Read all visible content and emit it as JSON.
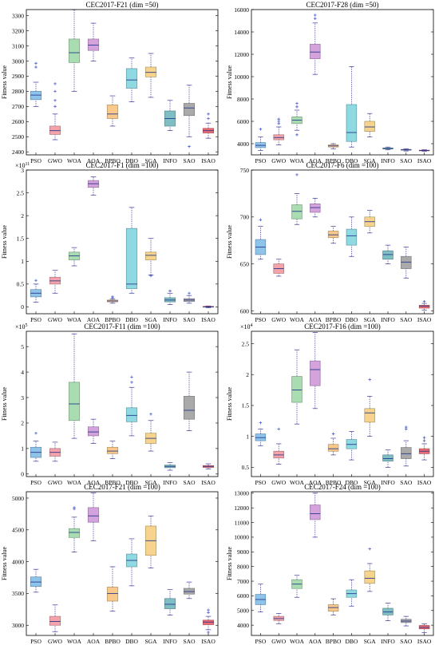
{
  "chart_data": [
    {
      "type": "box",
      "title": "CEC2017-F21 (dim =50)",
      "ylabel": "Fitness value",
      "categories": [
        "PSO",
        "GWO",
        "WOA",
        "AOA",
        "BPBO",
        "DBO",
        "SGA",
        "INFO",
        "SAO",
        "ISAO"
      ],
      "ylim": [
        2380,
        3340
      ],
      "yticks": [
        2400,
        2500,
        2600,
        2700,
        2800,
        2900,
        3000,
        3100,
        3200,
        3300
      ],
      "ytick_labels": [
        "2400",
        "2500",
        "2600",
        "2700",
        "2800",
        "2900",
        "3000",
        "3100",
        "3200",
        "3300"
      ],
      "exponent": "",
      "boxes": [
        {
          "min": 2700,
          "q1": 2745,
          "median": 2775,
          "q3": 2800,
          "max": 2860,
          "outliers": [
            2960,
            2985
          ]
        },
        {
          "min": 2480,
          "q1": 2515,
          "median": 2540,
          "q3": 2570,
          "max": 2650,
          "outliers": [
            2700,
            2740,
            2800,
            2850
          ]
        },
        {
          "min": 2800,
          "q1": 2990,
          "median": 3055,
          "q3": 3145,
          "max": 3340,
          "outliers": []
        },
        {
          "min": 3000,
          "q1": 3070,
          "median": 3105,
          "q3": 3145,
          "max": 3250,
          "outliers": []
        },
        {
          "min": 2570,
          "q1": 2620,
          "median": 2650,
          "q3": 2710,
          "max": 2770,
          "outliers": []
        },
        {
          "min": 2730,
          "q1": 2820,
          "median": 2875,
          "q3": 2950,
          "max": 3020,
          "outliers": []
        },
        {
          "min": 2760,
          "q1": 2895,
          "median": 2925,
          "q3": 2960,
          "max": 3050,
          "outliers": []
        },
        {
          "min": 2540,
          "q1": 2570,
          "median": 2620,
          "q3": 2670,
          "max": 2740,
          "outliers": []
        },
        {
          "min": 2500,
          "q1": 2640,
          "median": 2690,
          "q3": 2720,
          "max": 2840,
          "outliers": [
            2435
          ]
        },
        {
          "min": 2490,
          "q1": 2525,
          "median": 2540,
          "q3": 2555,
          "max": 2590,
          "outliers": [
            2620,
            2650
          ]
        }
      ]
    },
    {
      "type": "box",
      "title": "CEC2017-F28 (dim =50)",
      "ylabel": "Fitness value",
      "categories": [
        "PSO",
        "GWO",
        "WOA",
        "AOA",
        "BPBO",
        "DBO",
        "SGA",
        "INFO",
        "SAO",
        "ISAO"
      ],
      "ylim": [
        3000,
        16000
      ],
      "yticks": [
        4000,
        6000,
        8000,
        10000,
        12000,
        14000,
        16000
      ],
      "ytick_labels": [
        "4000",
        "6000",
        "8000",
        "10000",
        "12000",
        "14000",
        "16000"
      ],
      "exponent": "",
      "boxes": [
        {
          "min": 3400,
          "q1": 3650,
          "median": 3850,
          "q3": 4100,
          "max": 4600,
          "outliers": [
            5300
          ]
        },
        {
          "min": 3900,
          "q1": 4350,
          "median": 4550,
          "q3": 4800,
          "max": 5500,
          "outliers": [
            5800,
            6000,
            6200
          ]
        },
        {
          "min": 5200,
          "q1": 5800,
          "median": 6100,
          "q3": 6400,
          "max": 7000,
          "outliers": [
            4800,
            7300,
            7600
          ]
        },
        {
          "min": 10200,
          "q1": 11600,
          "median": 12200,
          "q3": 12900,
          "max": 14800,
          "outliers": [
            15200,
            15500
          ]
        },
        {
          "min": 3550,
          "q1": 3700,
          "median": 3800,
          "q3": 3900,
          "max": 4000,
          "outliers": []
        },
        {
          "min": 3700,
          "q1": 4200,
          "median": 5000,
          "q3": 7500,
          "max": 10900,
          "outliers": []
        },
        {
          "min": 4600,
          "q1": 5100,
          "median": 5500,
          "q3": 6000,
          "max": 6700,
          "outliers": []
        },
        {
          "min": 3450,
          "q1": 3530,
          "median": 3570,
          "q3": 3620,
          "max": 3700,
          "outliers": []
        },
        {
          "min": 3350,
          "q1": 3420,
          "median": 3450,
          "q3": 3490,
          "max": 3550,
          "outliers": []
        },
        {
          "min": 3320,
          "q1": 3360,
          "median": 3390,
          "q3": 3420,
          "max": 3460,
          "outliers": []
        }
      ]
    },
    {
      "type": "box",
      "title": "CEC2017-F1 (dim =100)",
      "ylabel": "Fitness value",
      "categories": [
        "PSO",
        "GWO",
        "WOA",
        "AOA",
        "BPBO",
        "DBO",
        "SGA",
        "INFO",
        "SAO",
        "ISAO"
      ],
      "ylim": [
        -0.15,
        3.0
      ],
      "yticks": [
        0,
        0.5,
        1,
        1.5,
        2,
        2.5,
        3
      ],
      "ytick_labels": [
        "0",
        "0.5",
        "1",
        "1.5",
        "2",
        "2.5",
        "3"
      ],
      "exponent": "11",
      "boxes": [
        {
          "min": 0.1,
          "q1": 0.22,
          "median": 0.3,
          "q3": 0.38,
          "max": 0.5,
          "outliers": [
            0.58
          ]
        },
        {
          "min": 0.3,
          "q1": 0.5,
          "median": 0.57,
          "q3": 0.65,
          "max": 0.8,
          "outliers": []
        },
        {
          "min": 0.9,
          "q1": 1.03,
          "median": 1.12,
          "q3": 1.2,
          "max": 1.3,
          "outliers": []
        },
        {
          "min": 2.45,
          "q1": 2.62,
          "median": 2.7,
          "q3": 2.77,
          "max": 2.85,
          "outliers": []
        },
        {
          "min": 0.08,
          "q1": 0.11,
          "median": 0.13,
          "q3": 0.15,
          "max": 0.17,
          "outliers": [
            0.2,
            0.22
          ]
        },
        {
          "min": 0.3,
          "q1": 0.4,
          "median": 0.5,
          "q3": 1.72,
          "max": 2.18,
          "outliers": []
        },
        {
          "min": 0.7,
          "q1": 1.03,
          "median": 1.13,
          "q3": 1.2,
          "max": 1.5,
          "outliers": [
            0.68
          ]
        },
        {
          "min": 0.05,
          "q1": 0.11,
          "median": 0.15,
          "q3": 0.2,
          "max": 0.3,
          "outliers": [
            0.35
          ]
        },
        {
          "min": 0.08,
          "q1": 0.12,
          "median": 0.15,
          "q3": 0.18,
          "max": 0.25,
          "outliers": [
            0.3
          ]
        },
        {
          "min": -0.02,
          "q1": 0.0,
          "median": 0.0,
          "q3": 0.01,
          "max": 0.02,
          "outliers": []
        }
      ]
    },
    {
      "type": "box",
      "title": "CEC2017-F6 (dim =100)",
      "ylabel": "Fitness value",
      "categories": [
        "PSO",
        "GWO",
        "WOA",
        "AOA",
        "BPBO",
        "DBO",
        "SGA",
        "INFO",
        "SAO",
        "ISAO"
      ],
      "ylim": [
        597,
        750
      ],
      "yticks": [
        600,
        650,
        700,
        750
      ],
      "ytick_labels": [
        "600",
        "650",
        "700",
        "750"
      ],
      "exponent": "",
      "boxes": [
        {
          "min": 655,
          "q1": 660,
          "median": 668,
          "q3": 676,
          "max": 690,
          "outliers": [
            697
          ]
        },
        {
          "min": 637,
          "q1": 640,
          "median": 645,
          "q3": 650,
          "max": 655,
          "outliers": []
        },
        {
          "min": 692,
          "q1": 698,
          "median": 706,
          "q3": 713,
          "max": 725,
          "outliers": [
            745
          ]
        },
        {
          "min": 700,
          "q1": 705,
          "median": 710,
          "q3": 714,
          "max": 720,
          "outliers": []
        },
        {
          "min": 672,
          "q1": 678,
          "median": 681,
          "q3": 685,
          "max": 690,
          "outliers": []
        },
        {
          "min": 658,
          "q1": 670,
          "median": 680,
          "q3": 687,
          "max": 700,
          "outliers": []
        },
        {
          "min": 683,
          "q1": 690,
          "median": 695,
          "q3": 700,
          "max": 707,
          "outliers": []
        },
        {
          "min": 650,
          "q1": 655,
          "median": 660,
          "q3": 664,
          "max": 670,
          "outliers": []
        },
        {
          "min": 635,
          "q1": 645,
          "median": 652,
          "q3": 658,
          "max": 668,
          "outliers": []
        },
        {
          "min": 601,
          "q1": 603,
          "median": 605,
          "q3": 606,
          "max": 608,
          "outliers": [
            610
          ]
        }
      ]
    },
    {
      "type": "box",
      "title": "CEC2017-F11 (dim =100)",
      "ylabel": "Fitness value",
      "categories": [
        "PSO",
        "GWO",
        "WOA",
        "AOA",
        "BPBO",
        "DBO",
        "SGA",
        "INFO",
        "SAO",
        "ISAO"
      ],
      "ylim": [
        -0.1,
        5.6
      ],
      "yticks": [
        0,
        1,
        2,
        3,
        4,
        5
      ],
      "ytick_labels": [
        "0",
        "1",
        "2",
        "3",
        "4",
        "5"
      ],
      "exponent": "5",
      "boxes": [
        {
          "min": 0.5,
          "q1": 0.65,
          "median": 0.85,
          "q3": 1.05,
          "max": 1.3,
          "outliers": [
            1.6
          ]
        },
        {
          "min": 0.5,
          "q1": 0.7,
          "median": 0.85,
          "q3": 1.0,
          "max": 1.25,
          "outliers": []
        },
        {
          "min": 1.4,
          "q1": 2.1,
          "median": 2.75,
          "q3": 3.6,
          "max": 5.5,
          "outliers": []
        },
        {
          "min": 1.2,
          "q1": 1.5,
          "median": 1.65,
          "q3": 1.85,
          "max": 2.15,
          "outliers": []
        },
        {
          "min": 0.6,
          "q1": 0.8,
          "median": 0.9,
          "q3": 1.05,
          "max": 1.3,
          "outliers": []
        },
        {
          "min": 1.5,
          "q1": 2.05,
          "median": 2.3,
          "q3": 2.6,
          "max": 3.4,
          "outliers": [
            3.6,
            3.8
          ]
        },
        {
          "min": 0.9,
          "q1": 1.2,
          "median": 1.4,
          "q3": 1.6,
          "max": 2.1,
          "outliers": [
            2.35
          ]
        },
        {
          "min": 0.15,
          "q1": 0.25,
          "median": 0.3,
          "q3": 0.35,
          "max": 0.45,
          "outliers": []
        },
        {
          "min": 1.7,
          "q1": 2.15,
          "median": 2.5,
          "q3": 3.05,
          "max": 4.0,
          "outliers": []
        },
        {
          "min": 0.2,
          "q1": 0.26,
          "median": 0.3,
          "q3": 0.33,
          "max": 0.4,
          "outliers": []
        }
      ]
    },
    {
      "type": "box",
      "title": "CEC2017-F16 (dim =100)",
      "ylabel": "Fitness value",
      "categories": [
        "PSO",
        "GWO",
        "WOA",
        "AOA",
        "BPBO",
        "DBO",
        "SGA",
        "INFO",
        "SAO",
        "ISAO"
      ],
      "ylim": [
        0.35,
        2.7
      ],
      "yticks": [
        0.5,
        1,
        1.5,
        2,
        2.5
      ],
      "ytick_labels": [
        "0.5",
        "1",
        "1.5",
        "2",
        "2.5"
      ],
      "exponent": "4",
      "boxes": [
        {
          "min": 0.85,
          "q1": 0.93,
          "median": 0.98,
          "q3": 1.04,
          "max": 1.12,
          "outliers": [
            1.22
          ]
        },
        {
          "min": 0.55,
          "q1": 0.65,
          "median": 0.7,
          "q3": 0.76,
          "max": 0.88,
          "outliers": [
            1.12
          ]
        },
        {
          "min": 1.2,
          "q1": 1.55,
          "median": 1.75,
          "q3": 1.97,
          "max": 2.4,
          "outliers": []
        },
        {
          "min": 1.45,
          "q1": 1.82,
          "median": 2.08,
          "q3": 2.22,
          "max": 2.68,
          "outliers": []
        },
        {
          "min": 0.7,
          "q1": 0.76,
          "median": 0.8,
          "q3": 0.87,
          "max": 0.97,
          "outliers": [
            1.04
          ]
        },
        {
          "min": 0.62,
          "q1": 0.8,
          "median": 0.87,
          "q3": 0.95,
          "max": 1.08,
          "outliers": []
        },
        {
          "min": 1.0,
          "q1": 1.23,
          "median": 1.38,
          "q3": 1.45,
          "max": 1.65,
          "outliers": [
            1.92
          ]
        },
        {
          "min": 0.5,
          "q1": 0.6,
          "median": 0.64,
          "q3": 0.7,
          "max": 0.78,
          "outliers": []
        },
        {
          "min": 0.52,
          "q1": 0.64,
          "median": 0.72,
          "q3": 0.82,
          "max": 0.93,
          "outliers": [
            1.12,
            1.15
          ]
        },
        {
          "min": 0.62,
          "q1": 0.72,
          "median": 0.76,
          "q3": 0.8,
          "max": 0.88,
          "outliers": [
            0.93,
            0.98
          ]
        }
      ]
    },
    {
      "type": "box",
      "title": "CEC2017-F21 (dim =100)",
      "ylabel": "Fitness value",
      "categories": [
        "PSO",
        "GWO",
        "WOA",
        "AOA",
        "BPBO",
        "DBO",
        "SGA",
        "INFO",
        "SAO",
        "ISAO"
      ],
      "ylim": [
        2840,
        5100
      ],
      "yticks": [
        3000,
        3500,
        4000,
        4500,
        5000
      ],
      "ytick_labels": [
        "3000",
        "3500",
        "4000",
        "4500",
        "5000"
      ],
      "exponent": "",
      "boxes": [
        {
          "min": 3520,
          "q1": 3610,
          "median": 3680,
          "q3": 3760,
          "max": 3880,
          "outliers": []
        },
        {
          "min": 2900,
          "q1": 3000,
          "median": 3060,
          "q3": 3140,
          "max": 3320,
          "outliers": []
        },
        {
          "min": 4150,
          "q1": 4380,
          "median": 4460,
          "q3": 4520,
          "max": 4700,
          "outliers": [
            4830,
            4850
          ]
        },
        {
          "min": 4330,
          "q1": 4620,
          "median": 4720,
          "q3": 4850,
          "max": 5080,
          "outliers": []
        },
        {
          "min": 3220,
          "q1": 3380,
          "median": 3500,
          "q3": 3600,
          "max": 3920,
          "outliers": []
        },
        {
          "min": 3620,
          "q1": 3920,
          "median": 4020,
          "q3": 4120,
          "max": 4360,
          "outliers": []
        },
        {
          "min": 3900,
          "q1": 4100,
          "median": 4330,
          "q3": 4560,
          "max": 4720,
          "outliers": []
        },
        {
          "min": 3160,
          "q1": 3260,
          "median": 3330,
          "q3": 3420,
          "max": 3560,
          "outliers": []
        },
        {
          "min": 3420,
          "q1": 3490,
          "median": 3530,
          "q3": 3580,
          "max": 3680,
          "outliers": []
        },
        {
          "min": 2930,
          "q1": 3010,
          "median": 3050,
          "q3": 3080,
          "max": 3140,
          "outliers": [
            2890,
            3200,
            3240
          ]
        }
      ]
    },
    {
      "type": "box",
      "title": "CEC2017-F24 (dim =100)",
      "ylabel": "Fitness value",
      "categories": [
        "PSO",
        "GWO",
        "WOA",
        "AOA",
        "BPBO",
        "DBO",
        "SGA",
        "INFO",
        "SAO",
        "ISAO"
      ],
      "ylim": [
        3300,
        13100
      ],
      "yticks": [
        4000,
        5000,
        6000,
        7000,
        8000,
        9000,
        10000,
        11000,
        12000,
        13000
      ],
      "ytick_labels": [
        "4000",
        "5000",
        "6000",
        "7000",
        "8000",
        "9000",
        "10000",
        "11000",
        "12000",
        "13000"
      ],
      "exponent": "",
      "boxes": [
        {
          "min": 4900,
          "q1": 5400,
          "median": 5750,
          "q3": 6100,
          "max": 6800,
          "outliers": []
        },
        {
          "min": 4100,
          "q1": 4320,
          "median": 4450,
          "q3": 4600,
          "max": 4800,
          "outliers": []
        },
        {
          "min": 5900,
          "q1": 6500,
          "median": 6800,
          "q3": 7100,
          "max": 7400,
          "outliers": []
        },
        {
          "min": 10000,
          "q1": 11200,
          "median": 11600,
          "q3": 12200,
          "max": 13000,
          "outliers": []
        },
        {
          "min": 4700,
          "q1": 4950,
          "median": 5200,
          "q3": 5400,
          "max": 5800,
          "outliers": []
        },
        {
          "min": 5300,
          "q1": 5900,
          "median": 6150,
          "q3": 6400,
          "max": 7100,
          "outliers": []
        },
        {
          "min": 6300,
          "q1": 6850,
          "median": 7200,
          "q3": 7700,
          "max": 8200,
          "outliers": [
            9200
          ]
        },
        {
          "min": 4300,
          "q1": 4700,
          "median": 4900,
          "q3": 5150,
          "max": 5500,
          "outliers": []
        },
        {
          "min": 3950,
          "q1": 4180,
          "median": 4280,
          "q3": 4400,
          "max": 4600,
          "outliers": []
        },
        {
          "min": 3500,
          "q1": 3750,
          "median": 3850,
          "q3": 3980,
          "max": 4100,
          "outliers": []
        }
      ]
    }
  ],
  "colors": {
    "PSO": "#8ec4ea",
    "GWO": "#f4a3ab",
    "WOA": "#a9dcb0",
    "AOA": "#d4a2dd",
    "BPBO": "#f8c98a",
    "DBO": "#8fd9e2",
    "SGA": "#f6d48e",
    "INFO": "#7fbfc4",
    "SAO": "#aaaaaa",
    "ISAO": "#ef6b74",
    "outlier": "#4d5bd0",
    "median": "#2a3b8f",
    "whisker": "#3a3a9a"
  }
}
